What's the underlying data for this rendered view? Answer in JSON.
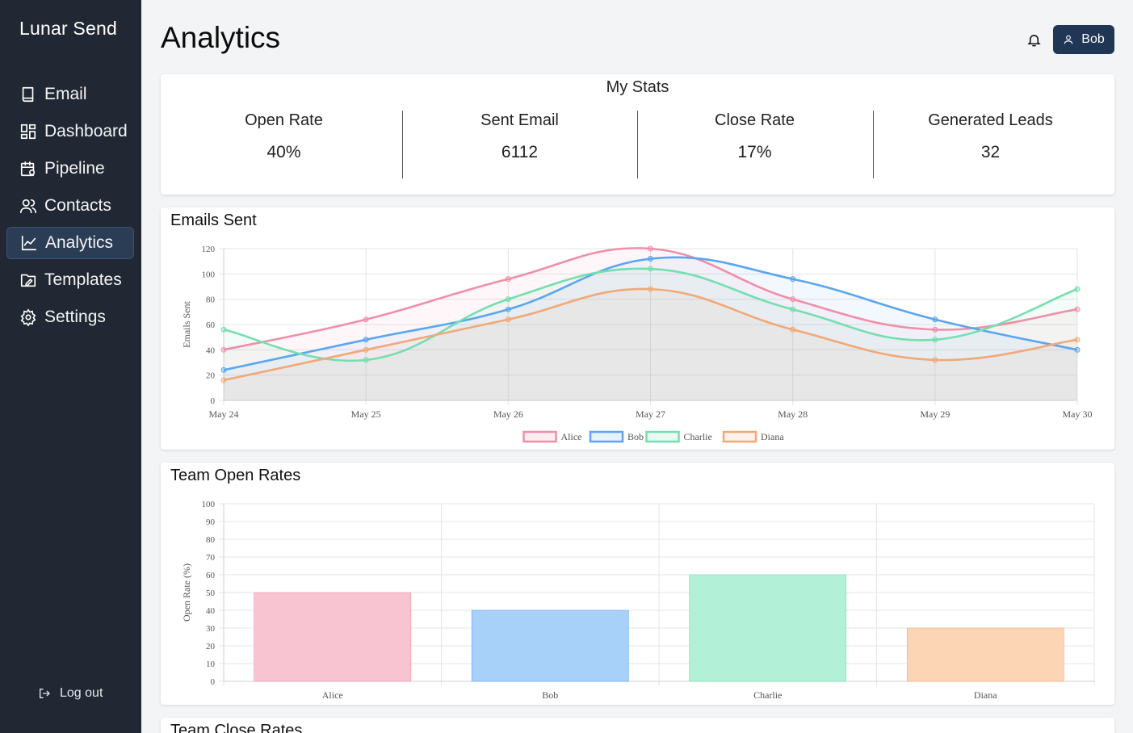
{
  "app": {
    "name": "Lunar Send"
  },
  "sidebar": {
    "items": [
      {
        "label": "Email",
        "icon": "book-icon",
        "active": false
      },
      {
        "label": "Dashboard",
        "icon": "grid-icon",
        "active": false
      },
      {
        "label": "Pipeline",
        "icon": "calendar-gear-icon",
        "active": false
      },
      {
        "label": "Contacts",
        "icon": "users-icon",
        "active": false
      },
      {
        "label": "Analytics",
        "icon": "line-chart-icon",
        "active": true
      },
      {
        "label": "Templates",
        "icon": "folder-edit-icon",
        "active": false
      },
      {
        "label": "Settings",
        "icon": "gear-icon",
        "active": false
      }
    ],
    "logout_label": "Log out"
  },
  "header": {
    "title": "Analytics",
    "user_name": "Bob"
  },
  "stats": {
    "title": "My Stats",
    "items": [
      {
        "label": "Open Rate",
        "value": "40%"
      },
      {
        "label": "Sent Email",
        "value": "6112"
      },
      {
        "label": "Close Rate",
        "value": "17%"
      },
      {
        "label": "Generated Leads",
        "value": "32"
      }
    ]
  },
  "colors": {
    "sidebar_bg": "#222833",
    "accent": "#1f3654",
    "alice": "#f08fa8",
    "bob": "#5aa6f0",
    "charlie": "#74dfb0",
    "diana": "#f2a877"
  },
  "chart_data": [
    {
      "title": "Emails Sent",
      "type": "line",
      "x": [
        "May 24",
        "May 25",
        "May 26",
        "May 27",
        "May 28",
        "May 29",
        "May 30"
      ],
      "ylabel": "Emails Sent",
      "ylim": [
        0,
        120
      ],
      "yticks": [
        0,
        20,
        40,
        60,
        80,
        100,
        120
      ],
      "grid": true,
      "legend": "bottom",
      "series": [
        {
          "name": "Alice",
          "color": "#f08fa8",
          "values": [
            40,
            64,
            96,
            120,
            80,
            56,
            72
          ]
        },
        {
          "name": "Bob",
          "color": "#5aa6f0",
          "values": [
            24,
            48,
            72,
            112,
            96,
            64,
            40
          ]
        },
        {
          "name": "Charlie",
          "color": "#74dfb0",
          "values": [
            56,
            32,
            80,
            104,
            72,
            48,
            88
          ]
        },
        {
          "name": "Diana",
          "color": "#f2a877",
          "values": [
            16,
            40,
            64,
            88,
            56,
            32,
            48
          ]
        }
      ]
    },
    {
      "title": "Team Open Rates",
      "type": "bar",
      "categories": [
        "Alice",
        "Bob",
        "Charlie",
        "Diana"
      ],
      "values": [
        50,
        40,
        60,
        30
      ],
      "colors": [
        "#f8c4d2",
        "#a8d1fa",
        "#b3f0d8",
        "#fcd5b5"
      ],
      "ylabel": "Open Rate (%)",
      "ylim": [
        0,
        100
      ],
      "yticks": [
        0,
        10,
        20,
        30,
        40,
        50,
        60,
        70,
        80,
        90,
        100
      ],
      "grid": true
    }
  ],
  "next_card": {
    "title": "Team Close Rates"
  }
}
